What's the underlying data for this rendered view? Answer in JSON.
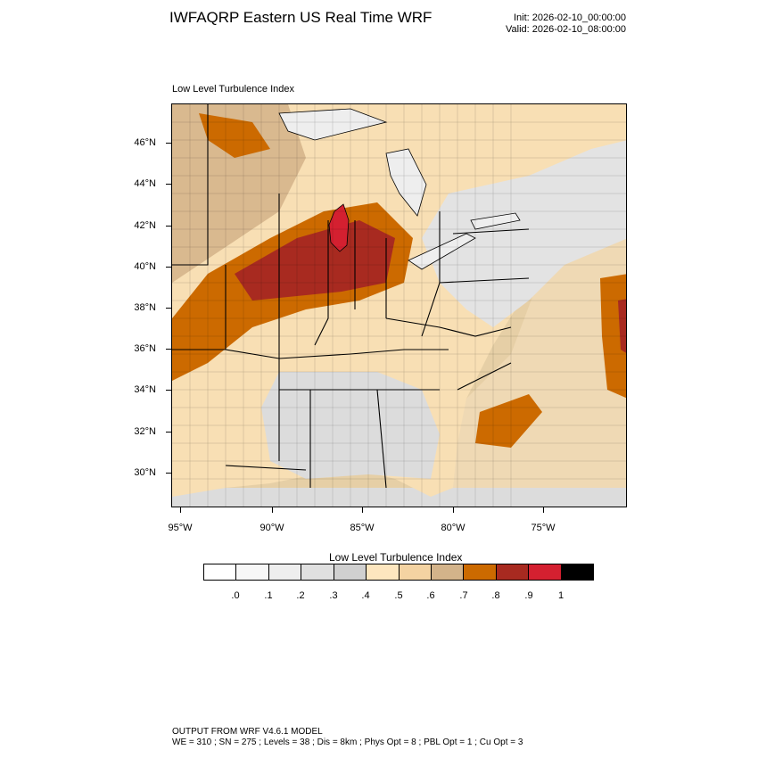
{
  "header": {
    "title": "IWFAQRP Eastern US Real Time WRF",
    "init": "Init: 2026-02-10_00:00:00",
    "valid": "Valid: 2026-02-10_08:00:00"
  },
  "map": {
    "subtitle": "Low Level Turbulence Index",
    "lat_labels": [
      "46°N",
      "44°N",
      "42°N",
      "40°N",
      "38°N",
      "36°N",
      "34°N",
      "32°N",
      "30°N"
    ],
    "lon_labels": [
      "95°W",
      "90°W",
      "85°W",
      "80°W",
      "75°W"
    ],
    "extent": {
      "lon_min": -95.5,
      "lon_max": -71.5,
      "lat_min": 28.4,
      "lat_max": 47.9
    }
  },
  "colorbar": {
    "title": "Low Level Turbulence Index",
    "colors": [
      "#ffffff",
      "#f7f7f7",
      "#eeeeee",
      "#e0e0e0",
      "#d0d0d0",
      "#fde6bf",
      "#f4d3a2",
      "#d3b38a",
      "#cc6a00",
      "#a82a20",
      "#d42030",
      "#000000"
    ],
    "labels": [
      ".0",
      ".1",
      ".2",
      ".3",
      ".4",
      ".5",
      ".6",
      ".7",
      ".8",
      ".9",
      "1"
    ]
  },
  "footer": {
    "line1": "OUTPUT FROM WRF V4.6.1 MODEL",
    "line2": "WE = 310 ; SN = 275 ; Levels = 38 ; Dis = 8km ; Phys Opt = 8 ; PBL Opt = 1 ; Cu Opt = 3"
  }
}
